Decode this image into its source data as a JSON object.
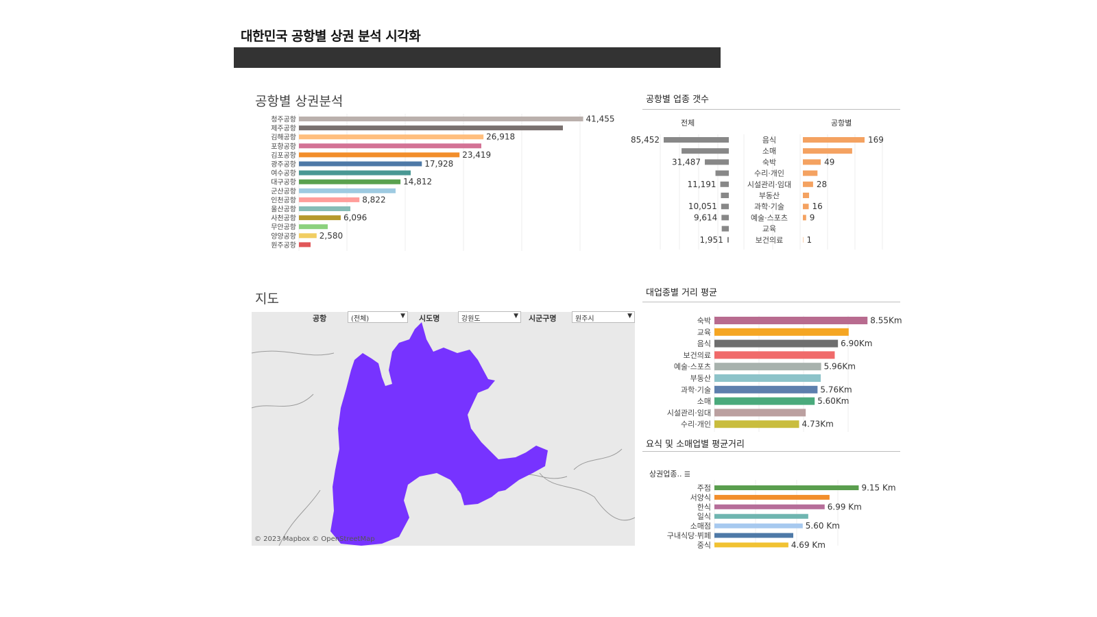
{
  "header": {
    "title": "대한민국 공항별 상권 분석 시각화"
  },
  "sections": {
    "airport_analysis": "공항별 상권분석",
    "industry_count": "공항별 업종 갯수",
    "map": "지도",
    "industry_distance": "대업종별 거리 평균",
    "food_retail_distance": "요식 및 소매업별 평균거리"
  },
  "industry_count_headers": {
    "total": "전체",
    "airport": "공항별"
  },
  "sort_field_label": "상권업종..",
  "filters": [
    {
      "label": "공항",
      "value": "(전체)"
    },
    {
      "label": "시도명",
      "value": "강원도"
    },
    {
      "label": "시군구명",
      "value": "원주시"
    }
  ],
  "map": {
    "credit": "© 2023 Mapbox © OpenStreetMap",
    "region_color": "#7733ff"
  },
  "chart_data": [
    {
      "id": "airport-bars",
      "type": "bar",
      "orientation": "horizontal",
      "categories": [
        "청주공항",
        "제주공항",
        "김해공항",
        "포항공항",
        "김포공항",
        "광주공항",
        "여수공항",
        "대구공항",
        "군산공항",
        "인천공항",
        "울산공항",
        "사천공항",
        "무안공항",
        "양양공항",
        "원주공항"
      ],
      "values": [
        41455,
        38500,
        26918,
        26600,
        23419,
        17928,
        16300,
        14812,
        14100,
        8822,
        7500,
        6096,
        4200,
        2580,
        1700
      ],
      "labels": [
        "41,455",
        "",
        "26,918",
        "",
        "23,419",
        "17,928",
        "",
        "14,812",
        "",
        "8,822",
        "",
        "6,096",
        "",
        "2,580",
        ""
      ],
      "colors": [
        "#bab0ac",
        "#79706e",
        "#ffbe7d",
        "#d37295",
        "#f28e2b",
        "#4e79a7",
        "#499894",
        "#59a14f",
        "#9ecae1",
        "#ff9d9a",
        "#86bcb6",
        "#b6992d",
        "#8cd17d",
        "#f1ce63",
        "#e15759"
      ],
      "xlim": [
        0,
        45000
      ]
    },
    {
      "id": "industry-total",
      "type": "bar",
      "orientation": "horizontal",
      "direction": "right-to-left",
      "categories": [
        "음식",
        "소매",
        "숙박",
        "수리·개인",
        "시설관리·임대",
        "부동산",
        "과학·기술",
        "예술·스포츠",
        "교육",
        "보건의료"
      ],
      "values": [
        85452,
        62000,
        31487,
        17500,
        11191,
        10400,
        10051,
        9614,
        9300,
        1951
      ],
      "labels": [
        "85,452",
        "",
        "31,487",
        "",
        "11,191",
        "",
        "10,051",
        "9,614",
        "",
        "1,951"
      ],
      "color": "#888888",
      "xlim": [
        0,
        85452
      ]
    },
    {
      "id": "industry-airport",
      "type": "bar",
      "orientation": "horizontal",
      "categories": [
        "음식",
        "소매",
        "숙박",
        "수리·개인",
        "시설관리·임대",
        "부동산",
        "과학·기술",
        "예술·스포츠",
        "교육",
        "보건의료"
      ],
      "values": [
        169,
        135,
        49,
        40,
        28,
        17,
        16,
        9,
        0,
        1
      ],
      "labels": [
        "169",
        "",
        "49",
        "",
        "28",
        "",
        "16",
        "9",
        "",
        "1"
      ],
      "color": "#f4a261",
      "xlim": [
        0,
        169
      ]
    },
    {
      "id": "industry-distance",
      "type": "bar",
      "orientation": "horizontal",
      "categories": [
        "숙박",
        "교육",
        "음식",
        "보건의료",
        "예술·스포츠",
        "부동산",
        "과학·기술",
        "소매",
        "시설관리·임대",
        "수리·개인"
      ],
      "values": [
        8.55,
        7.5,
        6.9,
        6.72,
        5.96,
        5.94,
        5.76,
        5.6,
        5.1,
        4.73
      ],
      "labels": [
        "8.55Km",
        "",
        "6.90Km",
        "",
        "5.96Km",
        "",
        "5.76Km",
        "5.60Km",
        "",
        "4.73Km"
      ],
      "colors": [
        "#b86b8f",
        "#f5a623",
        "#6e6e6e",
        "#f06a6a",
        "#a8b2ad",
        "#8dc3c9",
        "#5d7fad",
        "#4aaa7c",
        "#bba0a0",
        "#c9bd3e"
      ],
      "xlim": [
        0,
        9
      ]
    },
    {
      "id": "food-retail-distance",
      "type": "bar",
      "orientation": "horizontal",
      "categories": [
        "주점",
        "서양식",
        "한식",
        "일식",
        "소매점",
        "구내식당·뷔페",
        "중식"
      ],
      "values": [
        9.15,
        7.3,
        6.99,
        5.95,
        5.6,
        5.0,
        4.69
      ],
      "labels": [
        "9.15 Km",
        "",
        "6.99 Km",
        "",
        "5.60 Km",
        "",
        "4.69 Km"
      ],
      "colors": [
        "#5a9e4e",
        "#f28e2b",
        "#b66e9a",
        "#6fb5b0",
        "#a7c9ef",
        "#4e79a7",
        "#f1c232"
      ],
      "xlim": [
        0,
        10
      ]
    }
  ]
}
